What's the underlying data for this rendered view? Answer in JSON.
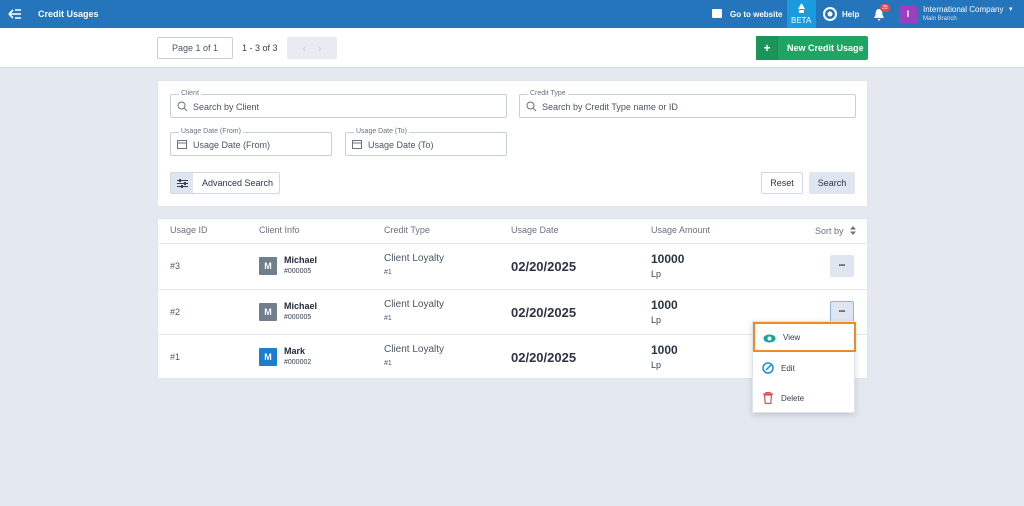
{
  "topbar": {
    "title": "Credit Usages",
    "go_to_website": "Go to website",
    "beta": "BETA",
    "help": "Help",
    "notifications": "25",
    "avatar": "I",
    "company": "International Company",
    "branch": "Main Branch"
  },
  "toolbar": {
    "page": "Page 1 of 1",
    "range": "1 - 3 of 3",
    "new_button": "New Credit Usage"
  },
  "filters": {
    "client": {
      "label": "Client",
      "placeholder": "Search by Client"
    },
    "credit_type": {
      "label": "Credit Type",
      "placeholder": "Search by Credit Type name or ID"
    },
    "date_from": {
      "label": "Usage Date (From)",
      "placeholder": "Usage Date (From)"
    },
    "date_to": {
      "label": "Usage Date (To)",
      "placeholder": "Usage Date (To)"
    },
    "advanced": "Advanced Search",
    "reset": "Reset",
    "search": "Search"
  },
  "table": {
    "headers": [
      "Usage ID",
      "Client Info",
      "Credit Type",
      "Usage Date",
      "Usage Amount"
    ],
    "sort": "Sort by",
    "rows": [
      {
        "id": "#3",
        "avatar": "M",
        "name": "Michael",
        "client_no": "#000005",
        "credit_type": "Client Loyalty",
        "type_no": "#1",
        "date": "02/20/2025",
        "amount": 10000,
        "currency": "Lp"
      },
      {
        "id": "#2",
        "avatar": "M",
        "name": "Michael",
        "client_no": "#000005",
        "credit_type": "Client Loyalty",
        "type_no": "#1",
        "date": "02/20/2025",
        "amount": 1000,
        "currency": "Lp"
      },
      {
        "id": "#1",
        "avatar": "M",
        "name": "Mark",
        "client_no": "#000002",
        "credit_type": "Client Loyalty",
        "type_no": "#1",
        "date": "02/20/2025",
        "amount": 1000,
        "currency": "Lp"
      }
    ]
  },
  "menu": {
    "items": [
      "View",
      "Edit",
      "Delete"
    ]
  }
}
